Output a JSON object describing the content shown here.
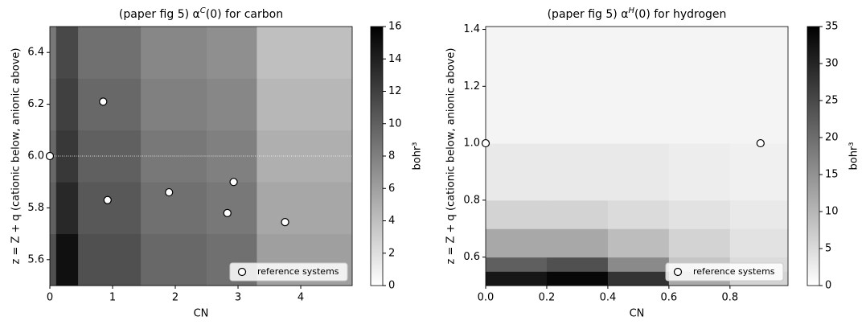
{
  "chart_data": [
    {
      "type": "heatmap",
      "title": [
        "(paper fig 5) α",
        "C",
        "(0) for carbon"
      ],
      "xlabel": "CN",
      "ylabel": "z = Z + q   (cationic below, anionic above)",
      "xlim": [
        0,
        4.82
      ],
      "ylim": [
        5.5,
        6.5
      ],
      "xticks": [
        0,
        1,
        2,
        3,
        4
      ],
      "yticks": [
        5.6,
        5.8,
        {
          "value": 6,
          "label": "6.0"
        },
        6.2,
        6.4
      ],
      "colormap": "gray_r",
      "x_edges": [
        0,
        0.1,
        0.45,
        1.45,
        2.5,
        3.3,
        4.82
      ],
      "y_edges": [
        5.5,
        5.7,
        5.9,
        6.1,
        6.3,
        6.5
      ],
      "z": [
        [
          11,
          15,
          11,
          9.5,
          9,
          6
        ],
        [
          10,
          13.5,
          10.5,
          9,
          8.5,
          5.5
        ],
        [
          9.5,
          12.5,
          10,
          8.5,
          8,
          5
        ],
        [
          9,
          12,
          9.5,
          8,
          7.5,
          4.5
        ],
        [
          8.5,
          11.5,
          9,
          7.5,
          7,
          4
        ]
      ],
      "hline": 6,
      "clim": [
        0,
        16
      ],
      "cticks": [
        0,
        2,
        4,
        6,
        8,
        10,
        12,
        14,
        16
      ],
      "clabel": "bohr³",
      "legend": "lower right",
      "series": [
        {
          "name": "reference systems",
          "color": "#ffffff",
          "x": [
            0,
            0.85,
            0.92,
            1.9,
            2.93,
            2.83,
            3.75
          ],
          "values": [
            6.0,
            6.21,
            5.83,
            5.86,
            5.9,
            5.78,
            5.745
          ]
        }
      ]
    },
    {
      "type": "heatmap",
      "title": [
        "(paper fig 5) α",
        "H",
        "(0) for hydrogen"
      ],
      "xlabel": "CN",
      "ylabel": "z = Z + q   (cationic below, anionic above)",
      "xlim": [
        0,
        0.99
      ],
      "ylim": [
        0.5,
        1.41
      ],
      "xticks": [
        {
          "value": 0,
          "label": "0.0"
        },
        0.2,
        0.4,
        0.6,
        0.8
      ],
      "yticks": [
        0.6,
        0.8,
        {
          "value": 1,
          "label": "1.0"
        },
        1.2,
        1.4
      ],
      "colormap": "gray_r",
      "x_edges": [
        0,
        0.2,
        0.4,
        0.6,
        0.8,
        0.99
      ],
      "y_edges": [
        0.5,
        0.55,
        0.6,
        0.7,
        0.8,
        1.0,
        1.41
      ],
      "z": [
        [
          32,
          34,
          28,
          12,
          6
        ],
        [
          22,
          24,
          16,
          8,
          5
        ],
        [
          12,
          12,
          9,
          6,
          4
        ],
        [
          6,
          6,
          5,
          4,
          3
        ],
        [
          3,
          3,
          3,
          2.5,
          2
        ],
        [
          1.5,
          1.5,
          1.5,
          1.5,
          1.5
        ]
      ],
      "clim": [
        0,
        35
      ],
      "cticks": [
        0,
        5,
        10,
        15,
        20,
        25,
        30,
        35
      ],
      "clabel": "bohr³",
      "legend": "lower right",
      "series": [
        {
          "name": "reference systems",
          "color": "#ffffff",
          "x": [
            0,
            0.9
          ],
          "values": [
            1.0,
            1.0
          ]
        }
      ]
    }
  ]
}
